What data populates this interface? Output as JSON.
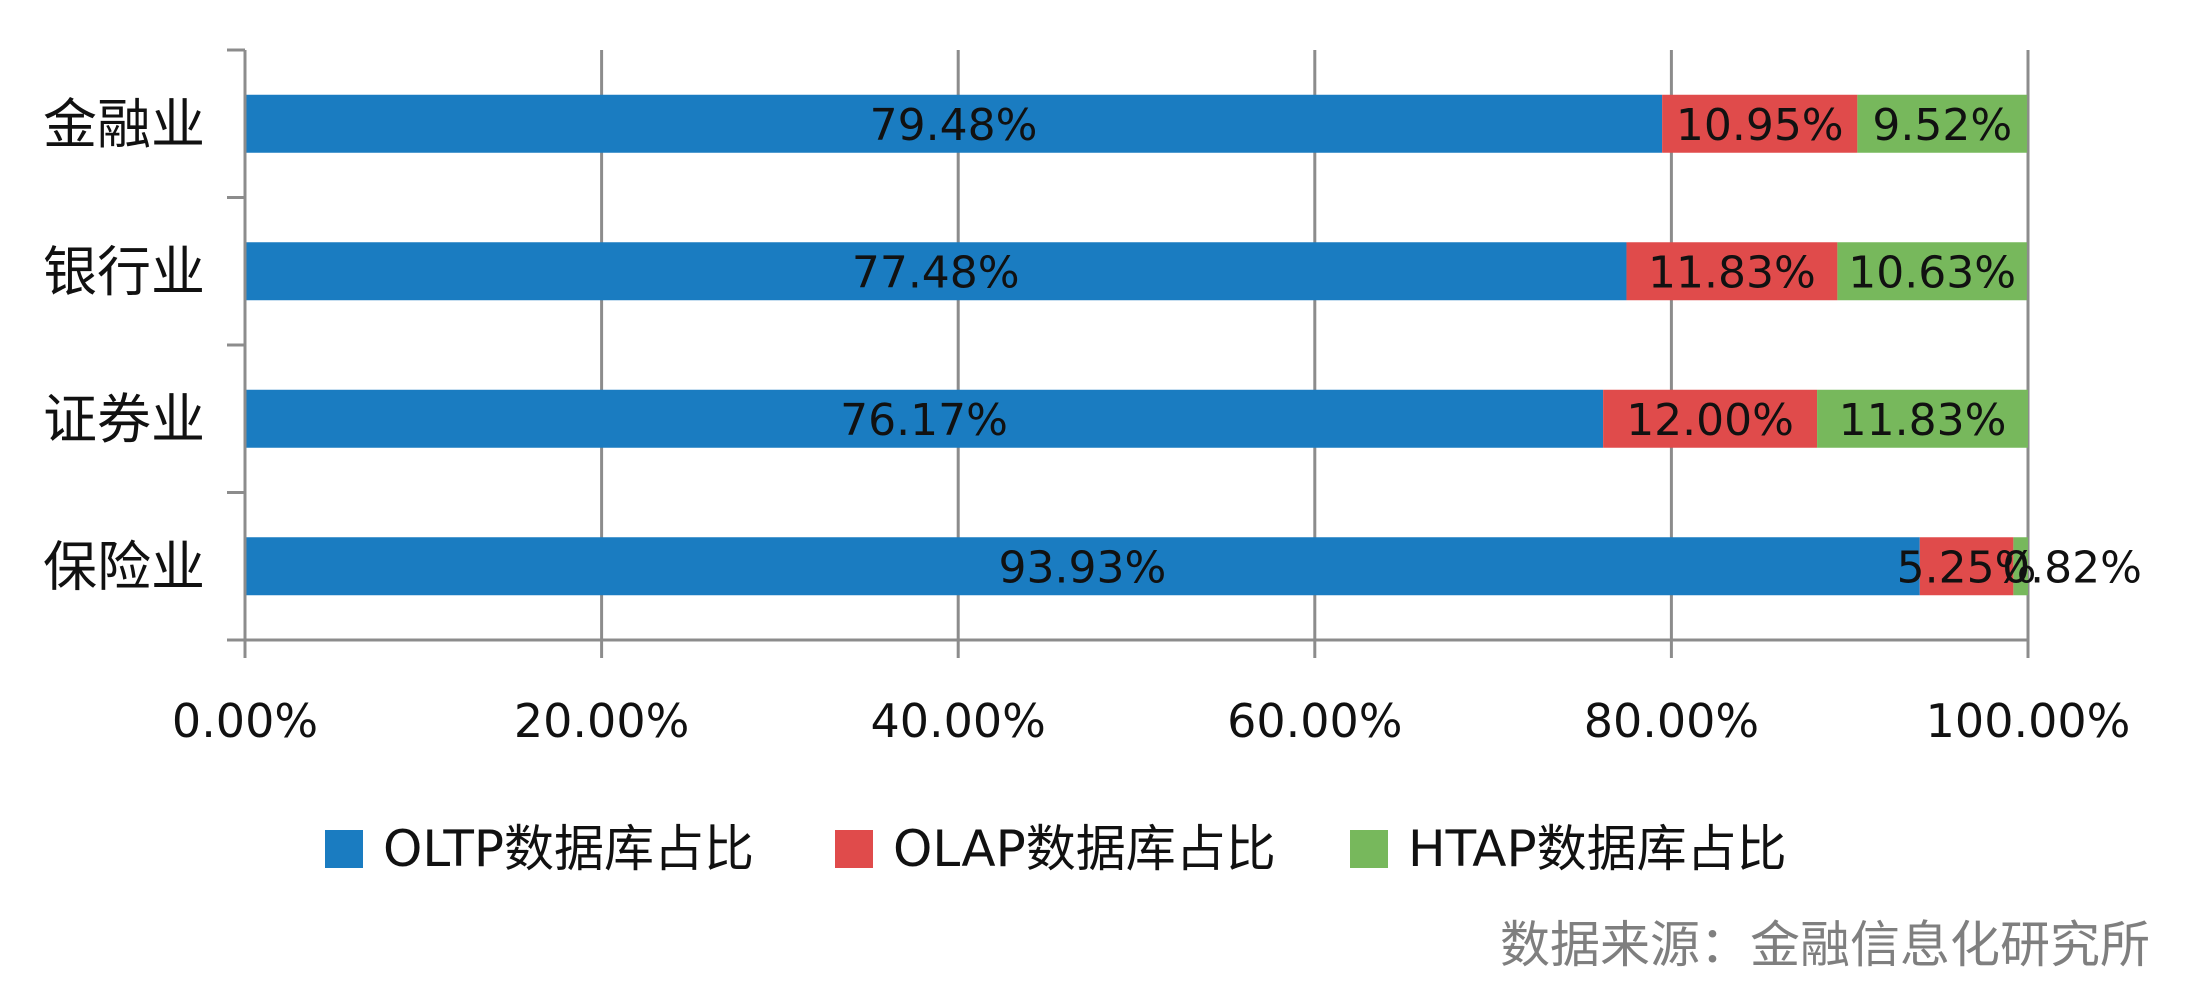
{
  "chart_data": {
    "type": "bar",
    "orientation": "horizontal",
    "stacked": true,
    "categories": [
      "金融业",
      "银行业",
      "证券业",
      "保险业"
    ],
    "series": [
      {
        "name": "OLTP数据库占比",
        "color": "#1a7cc1",
        "values": [
          79.48,
          77.48,
          76.17,
          93.93
        ],
        "labels": [
          "79.48%",
          "77.48%",
          "76.17%",
          "93.93%"
        ]
      },
      {
        "name": "OLAP数据库占比",
        "color": "#e04b4b",
        "values": [
          10.95,
          11.83,
          12.0,
          5.25
        ],
        "labels": [
          "10.95%",
          "11.83%",
          "12.00%",
          "5.25%"
        ]
      },
      {
        "name": "HTAP数据库占比",
        "color": "#77b85c",
        "values": [
          9.52,
          10.63,
          11.83,
          0.82
        ],
        "labels": [
          "9.52%",
          "10.63%",
          "11.83%",
          "0.82%"
        ]
      }
    ],
    "xlim": [
      0,
      100
    ],
    "xticks": [
      "0.00%",
      "20.00%",
      "40.00%",
      "60.00%",
      "80.00%",
      "100.00%"
    ],
    "grid": true,
    "legend_position": "bottom"
  },
  "source_text": "数据来源：金融信息化研究所"
}
